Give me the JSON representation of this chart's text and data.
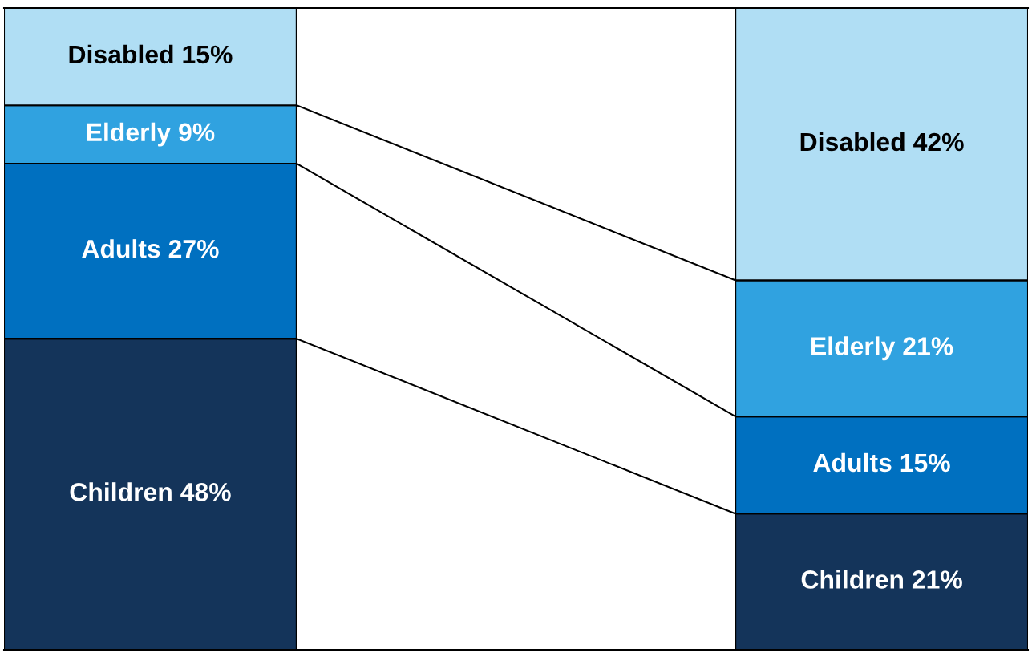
{
  "chart_data": {
    "type": "bar",
    "stacked": true,
    "categories": [
      null,
      null
    ],
    "series": [
      {
        "color": "#14345a",
        "values": [
          48,
          21
        ],
        "value_labels": [
          "Children 48%",
          "Children 21%"
        ]
      },
      {
        "color": "#0070c0",
        "values": [
          27,
          15
        ],
        "value_labels": [
          "Adults 27%",
          "Adults 15%"
        ]
      },
      {
        "color": "#30a2e0",
        "values": [
          9,
          21
        ],
        "value_labels": [
          "Elderly 9%",
          "Elderly 21%"
        ]
      },
      {
        "color": "#b0def4",
        "values": [
          15,
          42
        ],
        "value_labels": [
          "Disabled 15%",
          "Disabled 42%"
        ]
      }
    ]
  }
}
